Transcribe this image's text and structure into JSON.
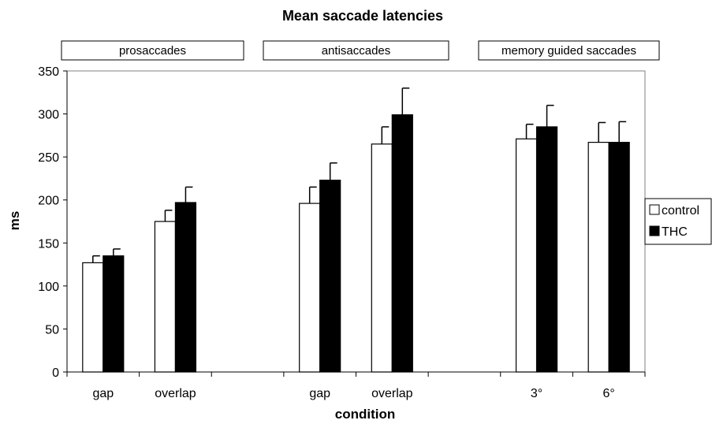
{
  "chart_data": {
    "type": "bar",
    "title": "Mean saccade latencies",
    "xlabel": "condition",
    "ylabel": "ms",
    "ylim": [
      0,
      350
    ],
    "yticks": [
      0,
      50,
      100,
      150,
      200,
      250,
      300,
      350
    ],
    "groups": [
      "prosaccades",
      "antisaccades",
      "memory guided saccades"
    ],
    "categories": [
      "gap",
      "overlap",
      "",
      "gap",
      "overlap",
      "",
      "3°",
      "6°"
    ],
    "series": [
      {
        "name": "control",
        "color": "#ffffff",
        "values": [
          127,
          175,
          null,
          196,
          265,
          null,
          271,
          267
        ],
        "errors": [
          8,
          13,
          null,
          19,
          20,
          null,
          17,
          23
        ]
      },
      {
        "name": "THC",
        "color": "#000000",
        "values": [
          135,
          197,
          null,
          223,
          299,
          null,
          285,
          267
        ],
        "errors": [
          8,
          18,
          null,
          20,
          31,
          null,
          25,
          24
        ]
      }
    ],
    "legend_position": "right",
    "grid": false
  }
}
